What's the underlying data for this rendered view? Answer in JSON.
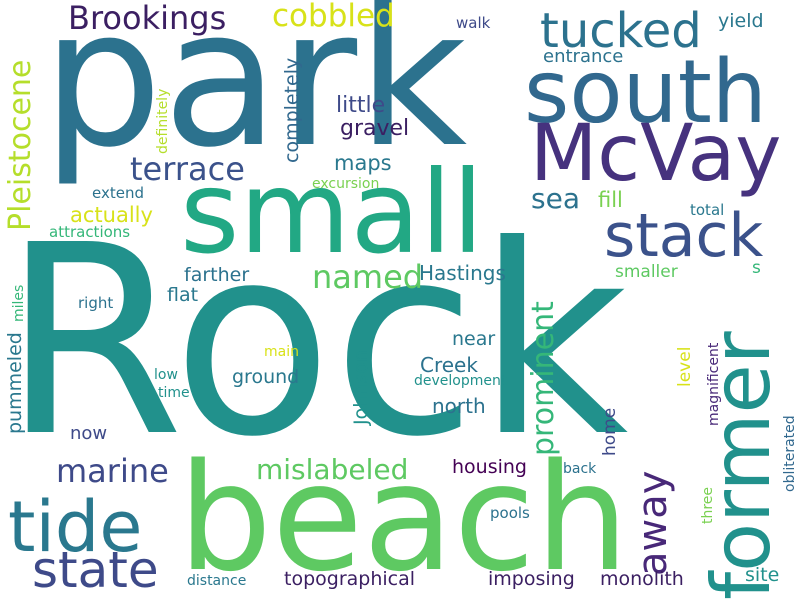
{
  "words": {
    "rock": {
      "text": "Rock",
      "color": "#21918c"
    },
    "park": {
      "text": "park",
      "color": "#2c728e"
    },
    "beach": {
      "text": "beach",
      "color": "#5ec962"
    },
    "small": {
      "text": "small",
      "color": "#22a884"
    },
    "south": {
      "text": "south",
      "color": "#31688e"
    },
    "mcvay": {
      "text": "McVay",
      "color": "#46327e"
    },
    "stack": {
      "text": "stack",
      "color": "#3b528b"
    },
    "former": {
      "text": "former",
      "color": "#21918c"
    },
    "tide": {
      "text": "tide",
      "color": "#2a788e"
    },
    "state": {
      "text": "state",
      "color": "#3e4a89"
    },
    "tucked": {
      "text": "tucked",
      "color": "#2c728e"
    },
    "brookings": {
      "text": "Brookings",
      "color": "#3b1f62"
    },
    "cobbled": {
      "text": "cobbled",
      "color": "#d8e219"
    },
    "pleistocene": {
      "text": "Pleistocene",
      "color": "#b5de2b"
    },
    "terrace": {
      "text": "terrace",
      "color": "#3b528b"
    },
    "sea": {
      "text": "sea",
      "color": "#2c728e"
    },
    "fill": {
      "text": "fill",
      "color": "#7ad151"
    },
    "away": {
      "text": "away",
      "color": "#482878"
    },
    "named": {
      "text": "named",
      "color": "#5ec962"
    },
    "marine": {
      "text": "marine",
      "color": "#3e4a89"
    },
    "mislabeled": {
      "text": "mislabeled",
      "color": "#5ec962"
    },
    "prominent": {
      "text": "prominent",
      "color": "#35b779"
    },
    "hastings": {
      "text": "Hastings",
      "color": "#2a788e"
    },
    "actually": {
      "text": "actually",
      "color": "#d8e219"
    },
    "attractions": {
      "text": "attractions",
      "color": "#35b779"
    },
    "completely": {
      "text": "completely",
      "color": "#31688e"
    },
    "little": {
      "text": "little",
      "color": "#3e4a89"
    },
    "gravel": {
      "text": "gravel",
      "color": "#3b1f62"
    },
    "maps": {
      "text": "maps",
      "color": "#2a788e"
    },
    "excursion": {
      "text": "excursion",
      "color": "#7ad151"
    },
    "extend": {
      "text": "extend",
      "color": "#2c728e"
    },
    "definitely": {
      "text": "definitely",
      "color": "#b5de2b"
    },
    "walk": {
      "text": "walk",
      "color": "#3e4a89"
    },
    "entrance": {
      "text": "entrance",
      "color": "#2c728e"
    },
    "yield": {
      "text": "yield",
      "color": "#2a788e"
    },
    "total": {
      "text": "total",
      "color": "#2a788e"
    },
    "farther": {
      "text": "farther",
      "color": "#2c728e"
    },
    "flat": {
      "text": "flat",
      "color": "#2a788e"
    },
    "smaller": {
      "text": "smaller",
      "color": "#5ec962"
    },
    "s": {
      "text": "s",
      "color": "#35b779"
    },
    "miles": {
      "text": "miles",
      "color": "#35b779"
    },
    "right": {
      "text": "right",
      "color": "#2c728e"
    },
    "near": {
      "text": "near",
      "color": "#2a788e"
    },
    "main": {
      "text": "main",
      "color": "#d8e219"
    },
    "creek": {
      "text": "Creek",
      "color": "#2c728e"
    },
    "johnson": {
      "text": "Johnson",
      "color": "#21918c"
    },
    "ground": {
      "text": "ground",
      "color": "#2a788e"
    },
    "low": {
      "text": "low",
      "color": "#21918c"
    },
    "time": {
      "text": "time",
      "color": "#21918c"
    },
    "development": {
      "text": "development",
      "color": "#21918c"
    },
    "level": {
      "text": "level",
      "color": "#d8e219"
    },
    "pummeled": {
      "text": "pummeled",
      "color": "#2a788e"
    },
    "north": {
      "text": "north",
      "color": "#2c728e"
    },
    "magnificent": {
      "text": "magnificent",
      "color": "#482878"
    },
    "obliterated": {
      "text": "obliterated",
      "color": "#31688e"
    },
    "now": {
      "text": "now",
      "color": "#3e4a89"
    },
    "home": {
      "text": "home",
      "color": "#3e4a89"
    },
    "housing": {
      "text": "housing",
      "color": "#440154"
    },
    "back": {
      "text": "back",
      "color": "#2c728e"
    },
    "three": {
      "text": "three",
      "color": "#7ad151"
    },
    "pools": {
      "text": "pools",
      "color": "#2c728e"
    },
    "distance": {
      "text": "distance",
      "color": "#2a788e"
    },
    "topographical": {
      "text": "topographical",
      "color": "#3b1f62"
    },
    "imposing": {
      "text": "imposing",
      "color": "#3b1f62"
    },
    "monolith": {
      "text": "monolith",
      "color": "#3b1f62"
    },
    "site": {
      "text": "site",
      "color": "#21918c"
    }
  }
}
